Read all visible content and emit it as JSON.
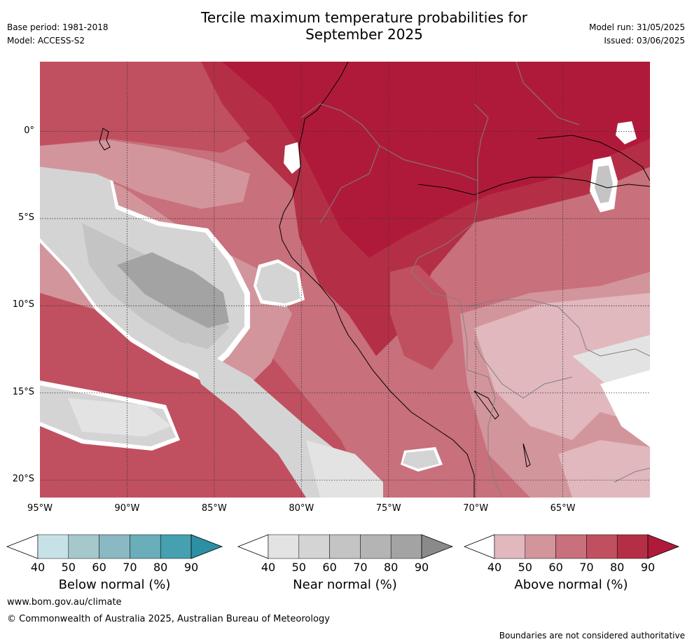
{
  "header": {
    "title_line1": "Tercile maximum temperature probabilities for",
    "title_line2": "September 2025",
    "base_period": "Base period: 1981-2018",
    "model": "Model: ACCESS-S2",
    "model_run": "Model run: 31/05/2025",
    "issued": "Issued: 03/06/2025"
  },
  "map": {
    "extent": {
      "lon": [
        -95,
        -60
      ],
      "lat": [
        -21,
        4
      ]
    },
    "lon_ticks": [
      {
        "value": -95,
        "label": "95°W"
      },
      {
        "value": -90,
        "label": "90°W"
      },
      {
        "value": -85,
        "label": "85°W"
      },
      {
        "value": -80,
        "label": "80°W"
      },
      {
        "value": -75,
        "label": "75°W"
      },
      {
        "value": -70,
        "label": "70°W"
      },
      {
        "value": -65,
        "label": "65°W"
      }
    ],
    "lat_ticks": [
      {
        "value": 0,
        "label": "0°"
      },
      {
        "value": -5,
        "label": "5°S"
      },
      {
        "value": -10,
        "label": "10°S"
      },
      {
        "value": -15,
        "label": "15°S"
      },
      {
        "value": -20,
        "label": "20°S"
      }
    ],
    "gridlines": true
  },
  "colorbars": [
    {
      "label": "Below normal (%)",
      "ticks": [
        "40",
        "50",
        "60",
        "70",
        "80",
        "90"
      ],
      "colors": [
        "#ffffff",
        "#c7e2e7",
        "#a6c8cd",
        "#8ab8c3",
        "#6aaeb9",
        "#45a0b0",
        "#2c8fa3"
      ]
    },
    {
      "label": "Near normal (%)",
      "ticks": [
        "40",
        "50",
        "60",
        "70",
        "80",
        "90"
      ],
      "colors": [
        "#ffffff",
        "#e3e3e3",
        "#d4d4d4",
        "#c4c4c4",
        "#b4b4b4",
        "#a3a3a3",
        "#8a8a8a"
      ]
    },
    {
      "label": "Above normal (%)",
      "ticks": [
        "40",
        "50",
        "60",
        "70",
        "80",
        "90"
      ],
      "colors": [
        "#ffffff",
        "#e0b8bd",
        "#d3959c",
        "#c8707c",
        "#c0505f",
        "#b42f45",
        "#b01a3a"
      ]
    }
  ],
  "footer": {
    "website": "www.bom.gov.au/climate",
    "copyright": "© Commonwealth of Australia 2025, Australian Bureau of Meteorology",
    "disclaimer": "Boundaries are not considered authoritative"
  }
}
